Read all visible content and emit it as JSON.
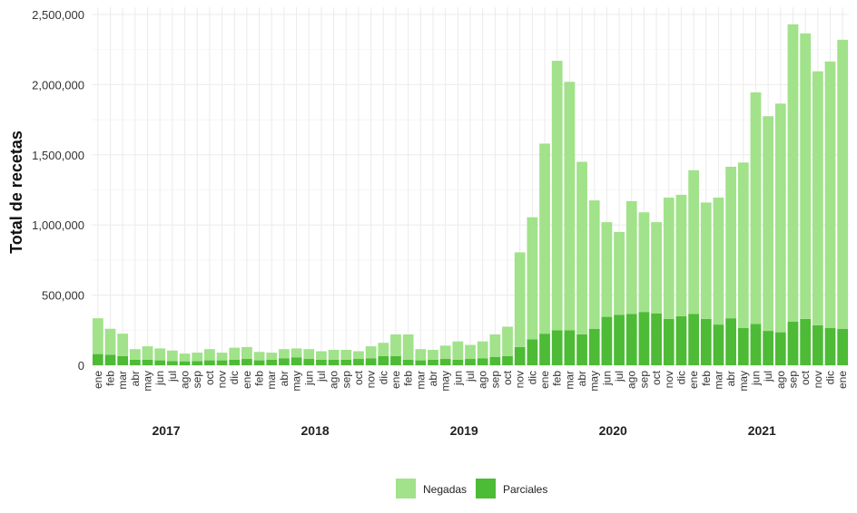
{
  "chart_data": {
    "type": "bar",
    "stacked": true,
    "ylabel": "Total de recetas",
    "xlabel": "",
    "ylim": [
      0,
      2500000
    ],
    "y_ticks": [
      0,
      500000,
      1000000,
      1500000,
      2000000,
      2500000
    ],
    "y_tick_labels": [
      "0",
      "500,000",
      "1,000,000",
      "1,500,000",
      "2,000,000",
      "2,500,000"
    ],
    "grid": true,
    "legend_position": "bottom",
    "years": [
      "2017",
      "2018",
      "2019",
      "2020",
      "2021"
    ],
    "months": [
      "ene",
      "feb",
      "mar",
      "abr",
      "may",
      "jun",
      "jul",
      "ago",
      "sep",
      "oct",
      "nov",
      "dic"
    ],
    "series": [
      {
        "name": "Parciales",
        "color": "#4dbb35",
        "values": [
          80000,
          75000,
          65000,
          40000,
          40000,
          35000,
          30000,
          28000,
          30000,
          35000,
          35000,
          40000,
          45000,
          35000,
          40000,
          50000,
          55000,
          45000,
          40000,
          40000,
          40000,
          45000,
          50000,
          65000,
          65000,
          40000,
          35000,
          40000,
          45000,
          40000,
          45000,
          50000,
          60000,
          65000,
          130000,
          185000,
          225000,
          250000,
          250000,
          220000,
          260000,
          345000,
          360000,
          365000,
          380000,
          370000,
          330000,
          350000,
          365000,
          330000,
          290000,
          335000,
          265000,
          295000,
          245000,
          235000,
          310000,
          330000,
          285000,
          265000,
          260000
        ]
      },
      {
        "name": "Negadas",
        "color": "#a1e28a",
        "values": [
          255000,
          185000,
          160000,
          75000,
          95000,
          85000,
          75000,
          55000,
          60000,
          80000,
          55000,
          85000,
          85000,
          60000,
          50000,
          65000,
          65000,
          70000,
          60000,
          70000,
          70000,
          55000,
          85000,
          95000,
          155000,
          180000,
          80000,
          70000,
          95000,
          130000,
          100000,
          120000,
          160000,
          210000,
          675000,
          870000,
          1355000,
          1920000,
          1770000,
          1230000,
          915000,
          675000,
          590000,
          805000,
          710000,
          650000,
          865000,
          865000,
          1025000,
          830000,
          905000,
          1080000,
          1180000,
          1650000,
          1530000,
          1630000,
          2120000,
          2035000,
          1810000,
          1900000,
          2060000
        ]
      }
    ]
  }
}
